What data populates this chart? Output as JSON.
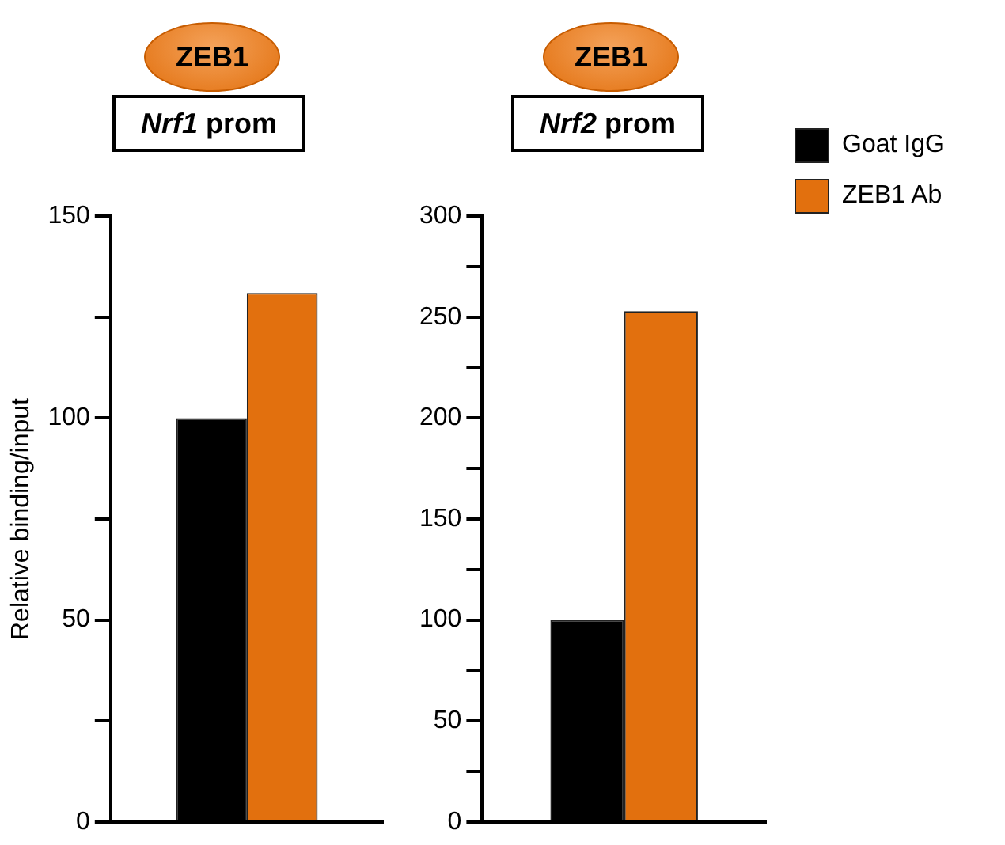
{
  "chart_data": [
    {
      "type": "bar",
      "title": "ZEB1",
      "subtitle": "Nrf1 prom",
      "ylabel": "Relative binding/input",
      "categories": [
        null
      ],
      "series": [
        {
          "color": "#000000",
          "values": [
            100
          ]
        },
        {
          "color": "#e2700e",
          "values": [
            131
          ]
        }
      ],
      "ylim": [
        0,
        150
      ],
      "yticks": [
        0,
        {
          "value": 25,
          "label": null
        },
        50,
        {
          "value": 75,
          "label": null
        },
        100,
        {
          "value": 125,
          "label": null
        },
        150
      ],
      "grid": false,
      "legend": false
    },
    {
      "type": "bar",
      "title": "ZEB1",
      "subtitle": "Nrf2 prom",
      "categories": [
        null
      ],
      "series": [
        {
          "name": "Goat IgG",
          "color": "#000000",
          "values": [
            100
          ]
        },
        {
          "name": "ZEB1 Ab",
          "color": "#e2700e",
          "values": [
            253
          ]
        }
      ],
      "ylim": [
        0,
        300
      ],
      "yticks": [
        0,
        {
          "value": 25,
          "label": null
        },
        50,
        {
          "value": 75,
          "label": null
        },
        100,
        {
          "value": 125,
          "label": null
        },
        150,
        {
          "value": 175,
          "label": null
        },
        200,
        {
          "value": 225,
          "label": null
        },
        250,
        {
          "value": 275,
          "label": null
        },
        300
      ],
      "grid": false,
      "legend": "right"
    }
  ]
}
